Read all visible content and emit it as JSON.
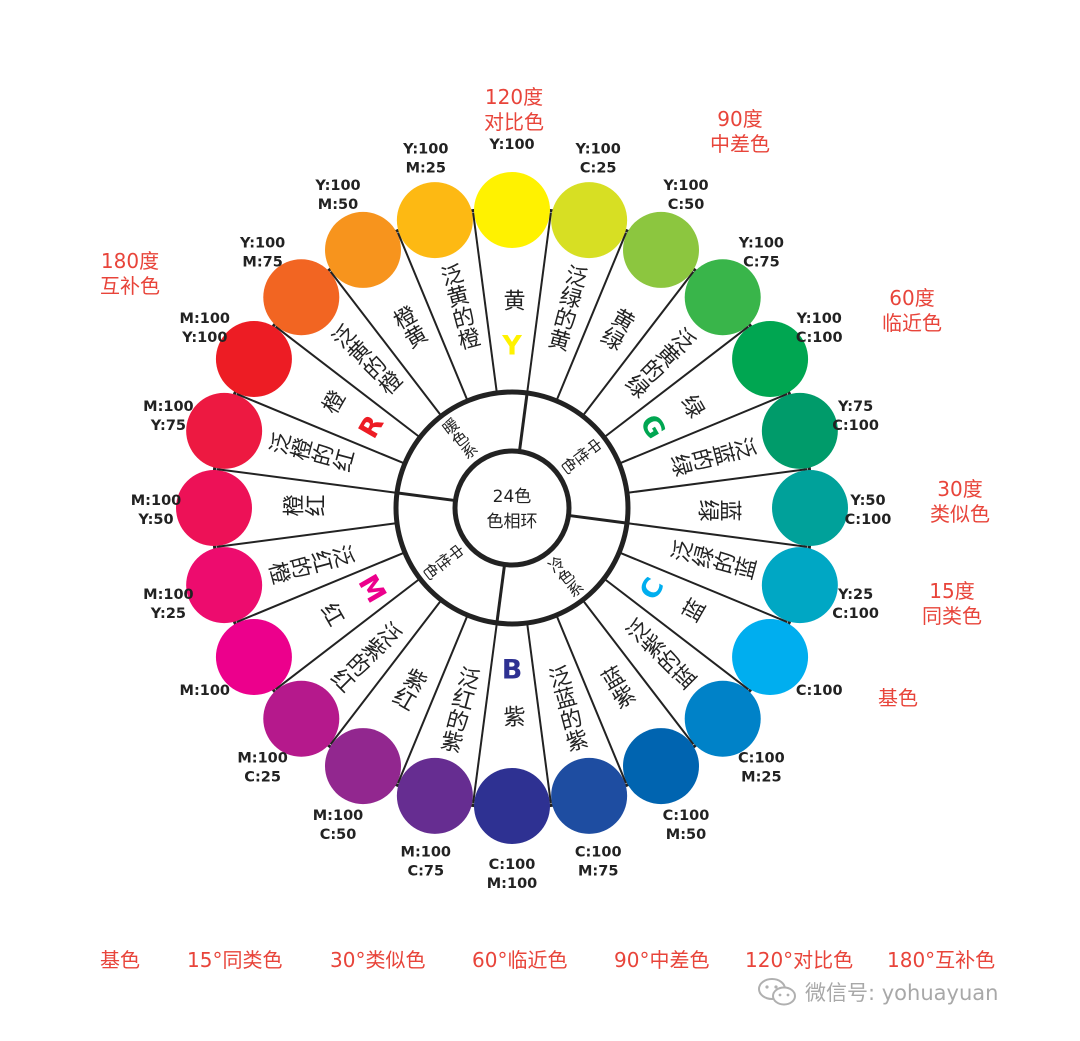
{
  "center": {
    "line1": "24色",
    "line2": "色相环"
  },
  "swatches": [
    {
      "cmyk": [
        "Y:100"
      ],
      "color": "#fff200",
      "sector": "黄"
    },
    {
      "cmyk": [
        "Y:100",
        "C:25"
      ],
      "color": "#d7df23",
      "sector": "泛绿的黄"
    },
    {
      "cmyk": [
        "Y:100",
        "C:50"
      ],
      "color": "#8cc63f",
      "sector": "黄绿"
    },
    {
      "cmyk": [
        "Y:100",
        "C:75"
      ],
      "color": "#39b54a",
      "sector": "泛黄的绿"
    },
    {
      "cmyk": [
        "Y:100",
        "C:100"
      ],
      "color": "#00a651",
      "sector": "绿"
    },
    {
      "cmyk": [
        "Y:75",
        "C:100"
      ],
      "color": "#009b6a",
      "sector": "泛蓝的绿"
    },
    {
      "cmyk": [
        "Y:50",
        "C:100"
      ],
      "color": "#00a19a",
      "sector": "蓝绿"
    },
    {
      "cmyk": [
        "Y:25",
        "C:100"
      ],
      "color": "#00a7c4",
      "sector": "泛绿的蓝"
    },
    {
      "cmyk": [
        "C:100"
      ],
      "color": "#00aeef",
      "sector": "蓝"
    },
    {
      "cmyk": [
        "C:100",
        "M:25"
      ],
      "color": "#0082c8",
      "sector": "泛紫的蓝"
    },
    {
      "cmyk": [
        "C:100",
        "M:50"
      ],
      "color": "#0064b0",
      "sector": "蓝紫"
    },
    {
      "cmyk": [
        "C:100",
        "M:75"
      ],
      "color": "#1e4da1",
      "sector": "泛蓝的紫"
    },
    {
      "cmyk": [
        "C:100",
        "M:100"
      ],
      "color": "#2e3192",
      "sector": "紫"
    },
    {
      "cmyk": [
        "M:100",
        "C:75"
      ],
      "color": "#662d91",
      "sector": "泛红的紫"
    },
    {
      "cmyk": [
        "M:100",
        "C:50"
      ],
      "color": "#92278f",
      "sector": "紫红"
    },
    {
      "cmyk": [
        "M:100",
        "C:25"
      ],
      "color": "#b5198c",
      "sector": "泛紫的红"
    },
    {
      "cmyk": [
        "M:100"
      ],
      "color": "#ec008c",
      "sector": "红"
    },
    {
      "cmyk": [
        "M:100",
        "Y:25"
      ],
      "color": "#ed0c6e",
      "sector": "泛红的橙"
    },
    {
      "cmyk": [
        "M:100",
        "Y:50"
      ],
      "color": "#ed1157",
      "sector": "橙红"
    },
    {
      "cmyk": [
        "M:100",
        "Y:75"
      ],
      "color": "#ed1941",
      "sector": "泛橙的红"
    },
    {
      "cmyk": [
        "M:100",
        "Y:100"
      ],
      "color": "#ed1c24",
      "sector": "橙"
    },
    {
      "cmyk": [
        "Y:100",
        "M:75"
      ],
      "color": "#f26522",
      "sector": "泛黄的橙"
    },
    {
      "cmyk": [
        "Y:100",
        "M:50"
      ],
      "color": "#f7941d",
      "sector": "橙黄"
    },
    {
      "cmyk": [
        "Y:100",
        "M:25"
      ],
      "color": "#fdb913",
      "sector": "泛黄的橙"
    }
  ],
  "primaries": [
    {
      "letter": "Y",
      "color": "#fff200"
    },
    {
      "letter": "G",
      "color": "#00a651"
    },
    {
      "letter": "C",
      "color": "#00aeef"
    },
    {
      "letter": "B",
      "color": "#2e3192"
    },
    {
      "letter": "M",
      "color": "#ec008c"
    },
    {
      "letter": "R",
      "color": "#ed1c24"
    }
  ],
  "inner_groups": [
    "中性色",
    "冷色系",
    "中性色",
    "暖色系"
  ],
  "side_notes": [
    {
      "lines": [
        "120度",
        "对比色"
      ]
    },
    {
      "lines": [
        "90度",
        "中差色"
      ]
    },
    {
      "lines": [
        "60度",
        "临近色"
      ]
    },
    {
      "lines": [
        "30度",
        "类似色"
      ]
    },
    {
      "lines": [
        "15度",
        "同类色"
      ]
    },
    {
      "lines": [
        "基色"
      ]
    },
    {
      "lines": [
        "180度",
        "互补色"
      ]
    }
  ],
  "legend": [
    "基色",
    "15°同类色",
    "30°类似色",
    "60°临近色",
    "90°中差色",
    "120°对比色",
    "180°互补色"
  ],
  "watermark": {
    "text": "微信号: yohuayuan",
    "icon": "wechat-icon"
  },
  "colors": {
    "note_red": "#e8443a",
    "ring": "#222222"
  }
}
